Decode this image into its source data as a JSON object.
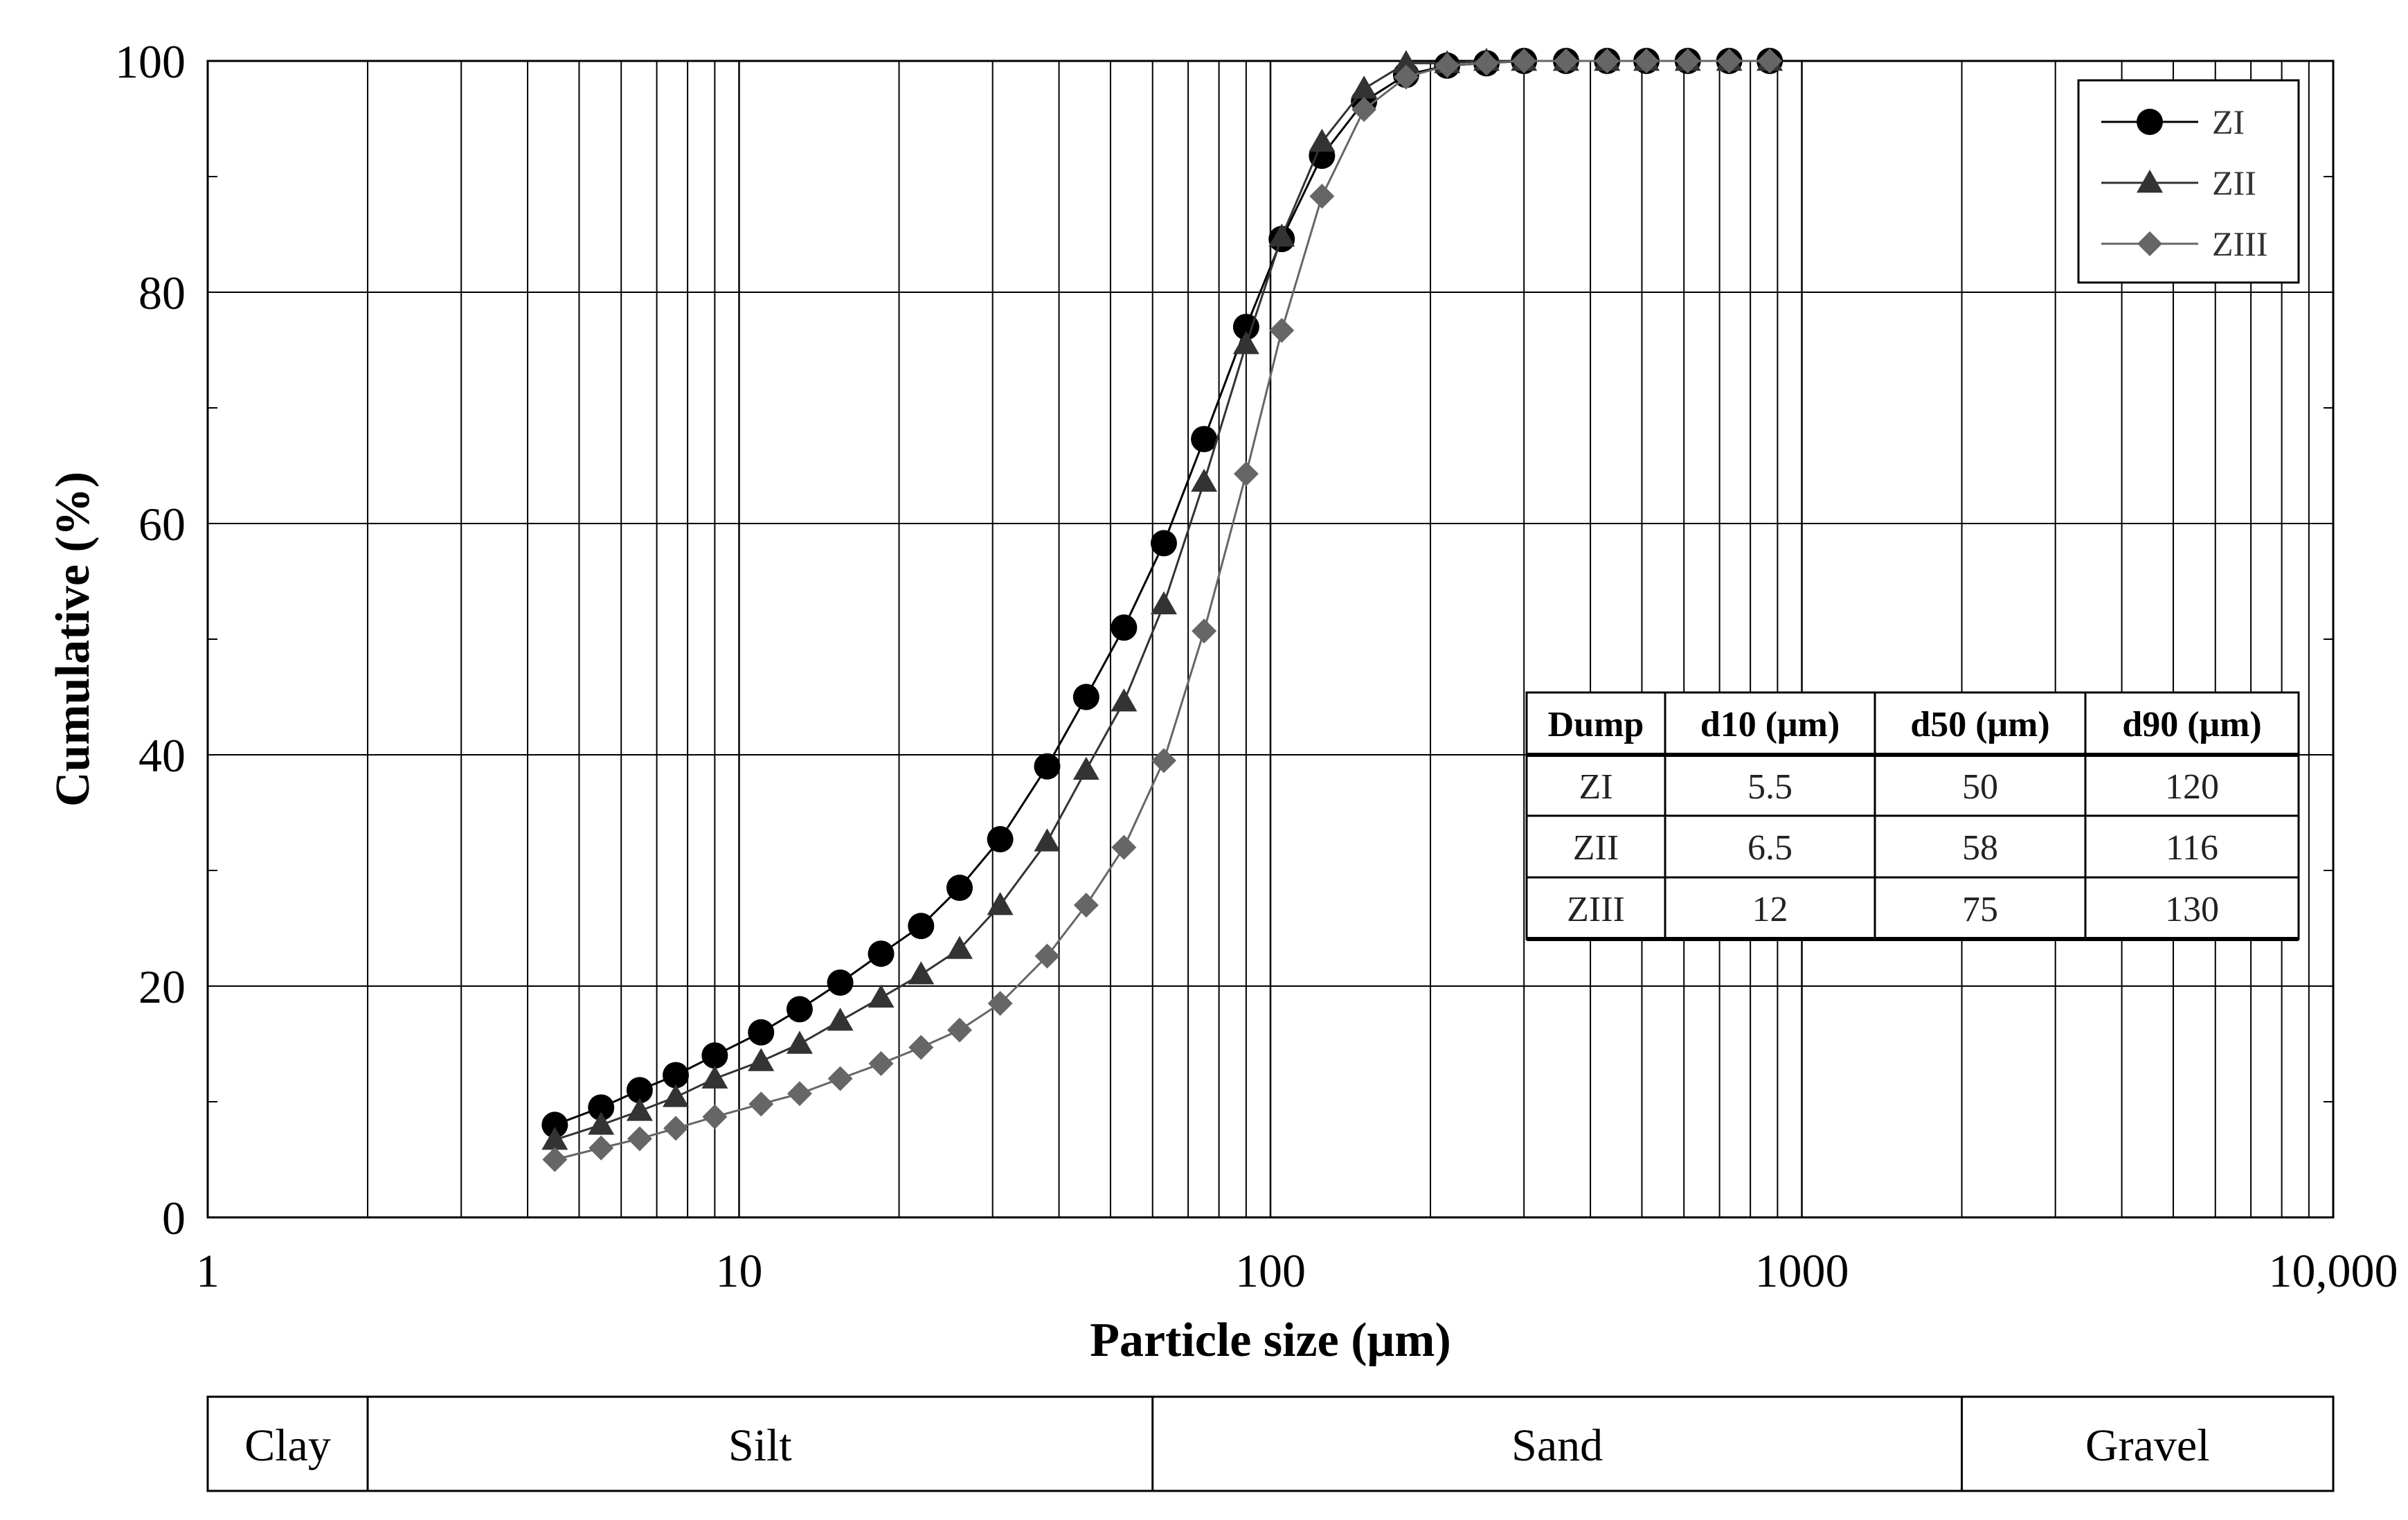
{
  "chart_data": {
    "type": "line",
    "xscale": "log",
    "xlabel": "Particle size (μm)",
    "ylabel": "Cumulative (%)",
    "xlim": [
      1,
      10000
    ],
    "ylim": [
      0,
      100
    ],
    "grid": true,
    "x_tick_labels": [
      "1",
      "10",
      "100",
      "1000",
      "10,000"
    ],
    "x_tick_values": [
      1,
      10,
      100,
      1000,
      10000
    ],
    "y_ticks": [
      0,
      20,
      40,
      60,
      80,
      100
    ],
    "legend_position": "top-right",
    "series": [
      {
        "name": "ZI",
        "marker": "circle",
        "color": "#000000",
        "x": [
          4.5,
          5.5,
          6.5,
          7.6,
          9.0,
          11,
          13,
          15.5,
          18.5,
          22,
          26,
          31,
          38,
          45,
          53,
          63,
          75,
          90,
          105,
          125,
          150,
          180,
          215,
          255,
          300,
          360,
          430,
          510,
          610,
          730,
          870
        ],
        "y": [
          8,
          9.5,
          11,
          12.3,
          14,
          16,
          18,
          20.3,
          22.8,
          25.2,
          28.5,
          32.7,
          39,
          45,
          51,
          58.3,
          67.3,
          77,
          84.6,
          91.8,
          96.5,
          98.8,
          99.6,
          99.8,
          100,
          100,
          100,
          100,
          100,
          100,
          100
        ]
      },
      {
        "name": "ZII",
        "marker": "triangle",
        "color": "#333333",
        "x": [
          4.5,
          5.5,
          6.5,
          7.6,
          9.0,
          11,
          13,
          15.5,
          18.5,
          22,
          26,
          31,
          38,
          45,
          53,
          63,
          75,
          90,
          105,
          125,
          150,
          180,
          215,
          255,
          300,
          360,
          430,
          510,
          610,
          730,
          870
        ],
        "y": [
          6.7,
          8,
          9.2,
          10.4,
          12,
          13.5,
          15,
          17,
          19,
          21,
          23.2,
          27,
          32.5,
          38.7,
          44.6,
          53,
          63.6,
          75.5,
          84.8,
          93,
          97.6,
          99.8,
          99.8,
          100,
          100,
          100,
          100,
          100,
          100,
          100,
          100
        ]
      },
      {
        "name": "ZIII",
        "marker": "diamond",
        "color": "#666666",
        "x": [
          4.5,
          5.5,
          6.5,
          7.6,
          9.0,
          11,
          13,
          15.5,
          18.5,
          22,
          26,
          31,
          38,
          45,
          53,
          63,
          75,
          90,
          105,
          125,
          150,
          180,
          215,
          255,
          300,
          360,
          430,
          510,
          610,
          730,
          870
        ],
        "y": [
          5,
          6,
          6.8,
          7.7,
          8.7,
          9.8,
          10.7,
          12,
          13.3,
          14.7,
          16.2,
          18.5,
          22.6,
          27,
          32,
          39.5,
          50.7,
          64.3,
          76.7,
          88.3,
          95.8,
          98.6,
          99.6,
          99.8,
          100,
          100,
          100,
          100,
          100,
          100,
          100
        ]
      }
    ],
    "inset_table": {
      "headers": [
        "Dump",
        "d10 (μm)",
        "d50 (μm)",
        "d90 (μm)"
      ],
      "rows": [
        [
          "ZI",
          "5.5",
          "50",
          "120"
        ],
        [
          "ZII",
          "6.5",
          "58",
          "116"
        ],
        [
          "ZIII",
          "12",
          "75",
          "130"
        ]
      ]
    },
    "classification_band": [
      {
        "label": "Clay",
        "from": 1,
        "to": 2
      },
      {
        "label": "Silt",
        "from": 2,
        "to": 60
      },
      {
        "label": "Sand",
        "from": 60,
        "to": 2000
      },
      {
        "label": "Gravel",
        "from": 2000,
        "to": 10000
      }
    ]
  }
}
